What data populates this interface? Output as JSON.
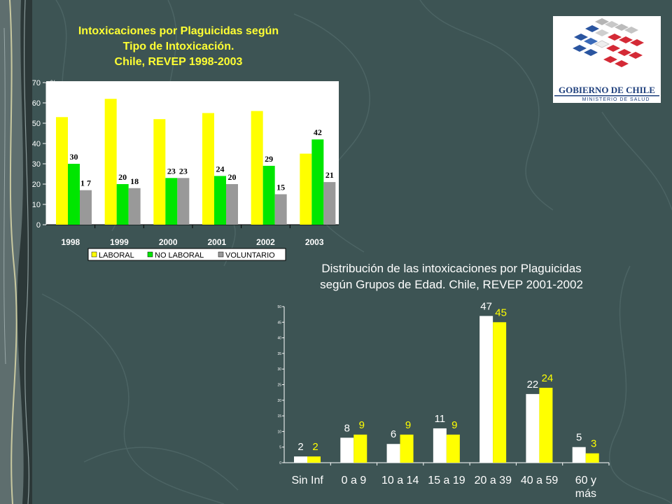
{
  "slide": {
    "title1_lines": [
      "Intoxicaciones por Plaguicidas según",
      "Tipo de Intoxicación.",
      "Chile, REVEP 1998-2003"
    ],
    "title2_lines": [
      "Distribución de las intoxicaciones por Plaguicidas",
      "según Grupos de Edad. Chile, REVEP 2001-2002"
    ],
    "logo_text": "GOBIERNO DE CHILE",
    "logo_subtext": "MINISTERIO DE SALUD"
  },
  "chart_data": [
    {
      "type": "bar",
      "ylabel": "%",
      "ylim": [
        0,
        70
      ],
      "yticks": [
        0,
        10,
        20,
        30,
        40,
        50,
        60,
        70
      ],
      "categories": [
        "1998",
        "1999",
        "2000",
        "2001",
        "2002",
        "2003"
      ],
      "legend_position": "bottom",
      "series": [
        {
          "name": "LABORAL",
          "color": "#ffff00",
          "values": [
            53,
            62,
            52,
            55,
            56,
            35
          ],
          "labels": [
            "53",
            "62",
            "52",
            "55",
            "56",
            "35"
          ]
        },
        {
          "name": "NO LABORAL",
          "color": "#00e600",
          "values": [
            30,
            20,
            23,
            24,
            29,
            42
          ],
          "labels": [
            "30",
            "20",
            "23",
            "24",
            "29",
            "42"
          ]
        },
        {
          "name": "VOLUNTARIO",
          "color": "#999999",
          "values": [
            17,
            18,
            23,
            20,
            15,
            21
          ],
          "labels": [
            "1 7",
            "18",
            "23",
            "20",
            "15",
            "21"
          ]
        }
      ]
    },
    {
      "type": "bar",
      "ylim": [
        0,
        50
      ],
      "yticks": [
        0,
        5,
        10,
        15,
        20,
        25,
        30,
        35,
        40,
        45,
        50
      ],
      "categories": [
        [
          "Sin Inf"
        ],
        [
          "0  a  9"
        ],
        [
          "10  a  14"
        ],
        [
          "15  a  19"
        ],
        [
          "20  a  39"
        ],
        [
          "40  a  59"
        ],
        [
          "60  y",
          "más"
        ]
      ],
      "series": [
        {
          "color": "#ffffff",
          "label_color": "#ffffff",
          "values": [
            2,
            8,
            6,
            11,
            47,
            22,
            5
          ]
        },
        {
          "color": "#ffff00",
          "label_color": "#ffff00",
          "values": [
            2,
            9,
            9,
            9,
            45,
            24,
            3
          ]
        }
      ]
    }
  ]
}
